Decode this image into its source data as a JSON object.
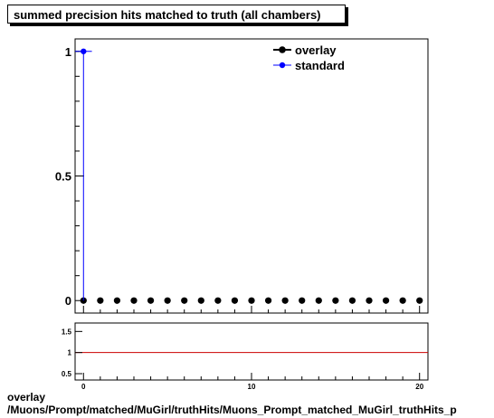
{
  "chart_data": [
    {
      "type": "scatter",
      "title": "summed precision hits matched to truth (all chambers)",
      "xlim": [
        -0.5,
        20.5
      ],
      "ylim": [
        -0.05,
        1.05
      ],
      "y_ticks": [
        "0",
        "0.5",
        "1"
      ],
      "legend_position": "top-right",
      "series": [
        {
          "name": "overlay",
          "color": "#000000",
          "x": [
            0,
            1,
            2,
            3,
            4,
            5,
            6,
            7,
            8,
            9,
            10,
            11,
            12,
            13,
            14,
            15,
            16,
            17,
            18,
            19,
            20
          ],
          "y": [
            0,
            0,
            0,
            0,
            0,
            0,
            0,
            0,
            0,
            0,
            0,
            0,
            0,
            0,
            0,
            0,
            0,
            0,
            0,
            0,
            0
          ]
        },
        {
          "name": "standard",
          "color": "#0000ff",
          "x": [
            0
          ],
          "y": [
            1
          ]
        }
      ]
    },
    {
      "type": "line",
      "xlim": [
        -0.5,
        20.5
      ],
      "ylim": [
        0.35,
        1.7
      ],
      "y_ticks": [
        "0.5",
        "1",
        "1.5"
      ],
      "x_ticks": [
        "0",
        "10",
        "20"
      ],
      "reference_line": {
        "y": 1,
        "color": "#cc0000"
      }
    }
  ],
  "footer": {
    "line1": "overlay",
    "line2": "/Muons/Prompt/matched/MuGirl/truthHits/Muons_Prompt_matched_MuGirl_truthHits_p"
  }
}
